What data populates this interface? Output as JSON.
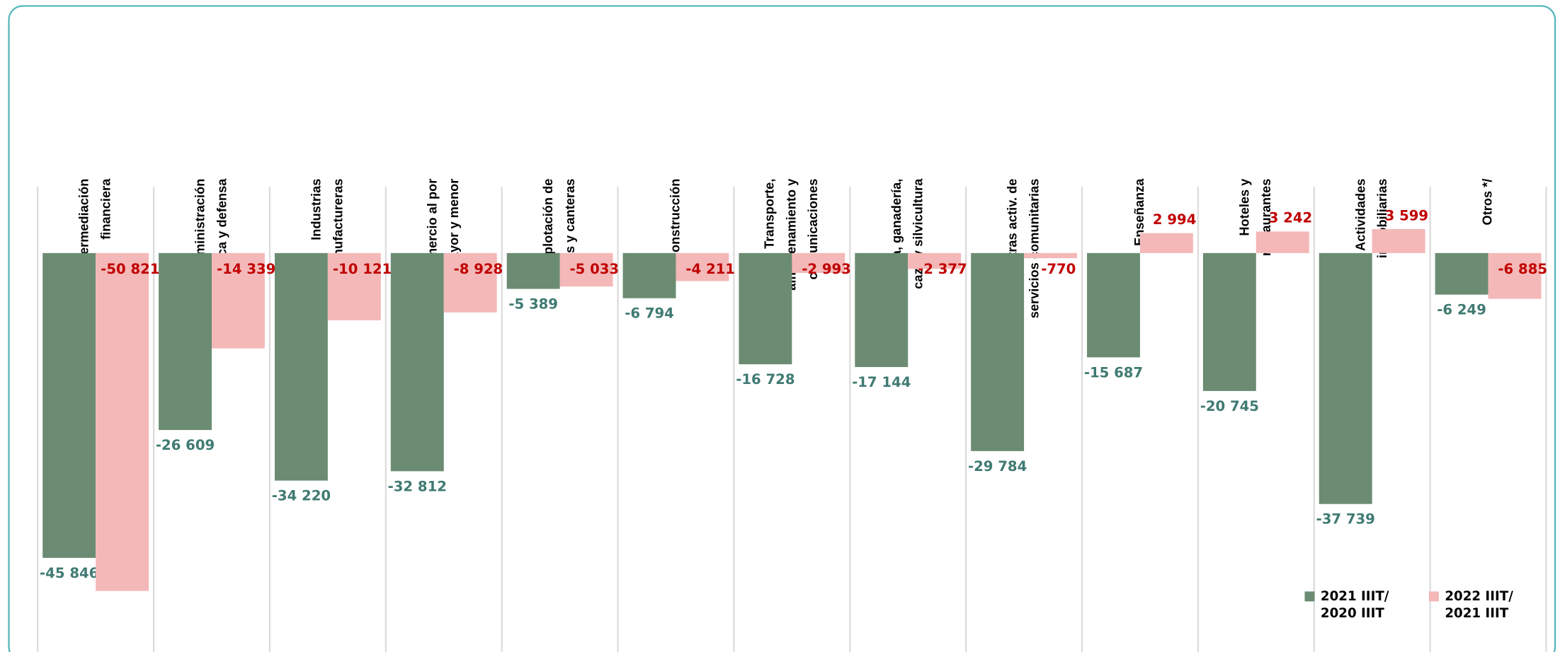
{
  "chart_data": {
    "type": "bar",
    "categories": [
      "Intermediación\nfinanciera",
      "Administración\npública y defensa",
      "Industrias\nmanufactureras",
      "Comercio al por\nmayor y menor",
      "Explotación de\nminas y canteras",
      "Construcción",
      "Transporte,\nalmacenamiento y\ncomunicaciones",
      "Agricultura, ganadería,\ncaza y silvicultura",
      "Otras activ. de\nservicios comunitarias",
      "Enseñanza",
      "Hoteles y\nrestaurantes",
      "Actividades\ninmobiliarias",
      "Otros */"
    ],
    "series": [
      {
        "name": "2021 IIIT/\n2020 IIIT",
        "color": "#6b8c73",
        "label_color": "#3f7a72",
        "values": [
          -45846,
          -26609,
          -34220,
          -32812,
          -5389,
          -6794,
          -16728,
          -17144,
          -29784,
          -15687,
          -20745,
          -37739,
          -6249
        ],
        "value_labels": [
          "-45 846",
          "-26 609",
          "-34 220",
          "-32 812",
          "-5 389",
          "-6 794",
          "-16 728",
          "-17 144",
          "-29 784",
          "-15 687",
          "-20 745",
          "-37 739",
          "-6 249"
        ]
      },
      {
        "name": "2022 IIIT/\n2021 IIIT",
        "color": "#f4b8b8",
        "label_color": "#c00000",
        "values": [
          -50821,
          -14339,
          -10121,
          -8928,
          -5033,
          -4211,
          -2993,
          -2377,
          -770,
          2994,
          3242,
          3599,
          -6885
        ],
        "value_labels": [
          "-50 821",
          "-14 339",
          "-10 121",
          "-8 928",
          "-5 033",
          "-4 211",
          "-2 993",
          "-2 377",
          "-770",
          "2 994",
          "3 242",
          "3 599",
          "-6 885"
        ]
      }
    ],
    "ylim": [
      -60000,
      10000
    ]
  }
}
